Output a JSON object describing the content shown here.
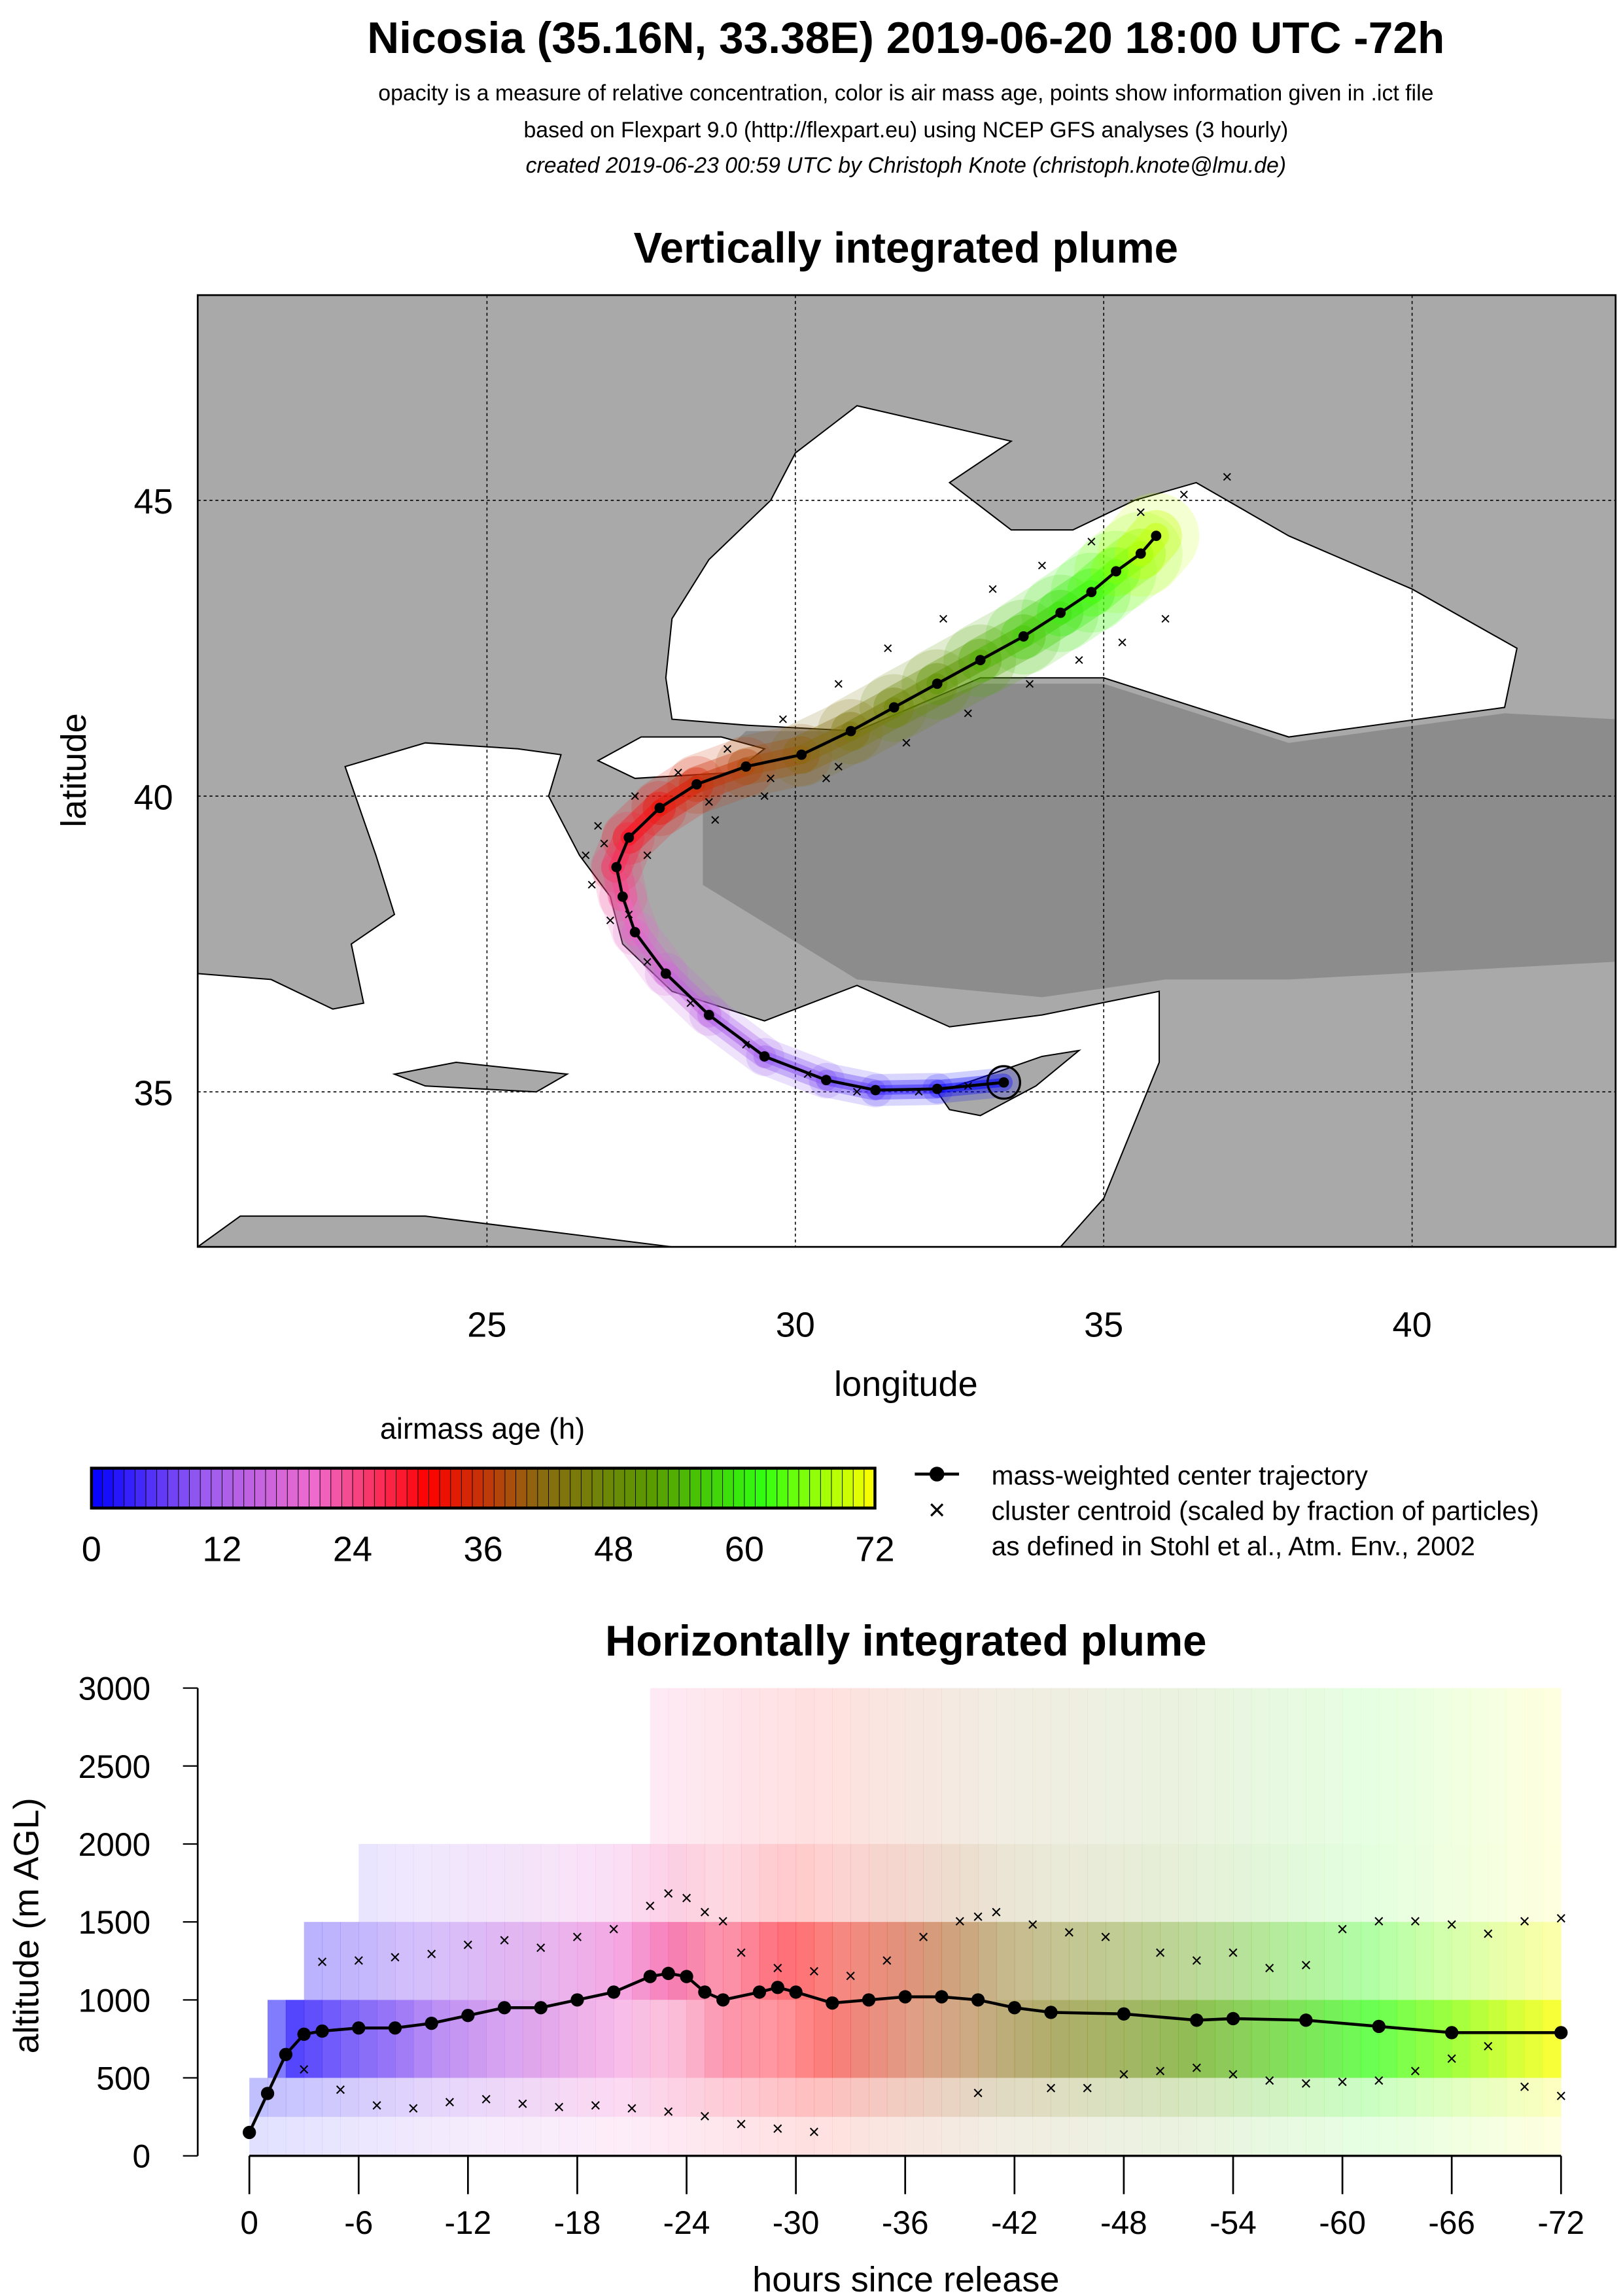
{
  "header": {
    "title": "Nicosia (35.16N, 33.38E) 2019-06-20 18:00 UTC -72h",
    "line1": "opacity is a measure of relative concentration, color is air mass age, points show information given in .ict file",
    "line2": "based on Flexpart 9.0 (http://flexpart.eu) using NCEP GFS analyses (3 hourly)",
    "line3": "created 2019-06-23 00:59 UTC by Christoph Knote (christoph.knote@lmu.de)"
  },
  "colors": {
    "land": "#a9a9a9",
    "land_dark": "#8c8c8c",
    "sea": "#ffffff",
    "colormap": [
      "#0000ff",
      "#9b5cf0",
      "#f06acd",
      "#ff0000",
      "#8a6a10",
      "#5a9a00",
      "#30ff10",
      "#ffff00"
    ]
  },
  "legend": {
    "colorbar_title": "airmass age (h)",
    "colorbar_ticks": [
      "0",
      "12",
      "24",
      "36",
      "48",
      "60",
      "72"
    ],
    "center_label": "mass-weighted center trajectory",
    "cluster_label": "cluster centroid (scaled by fraction of particles)",
    "reference_label": "as defined in Stohl et al., Atm. Env., 2002"
  },
  "chart_data": [
    {
      "type": "scatter",
      "title": "Vertically integrated plume",
      "xlabel": "longitude",
      "ylabel": "latitude",
      "xlim": [
        20.31,
        43.3
      ],
      "ylim": [
        32.38,
        48.47
      ],
      "xticks": [
        25,
        30,
        35,
        40
      ],
      "yticks": [
        35,
        40,
        45
      ],
      "grid": true,
      "release": {
        "lon": 33.38,
        "lat": 35.16
      },
      "center_trajectory": {
        "age_h": [
          0,
          3,
          6,
          9,
          12,
          15,
          18,
          21,
          24,
          27,
          30,
          33,
          36,
          39,
          42,
          45,
          48,
          51,
          54,
          57,
          60,
          63,
          66,
          69,
          72
        ],
        "lon": [
          33.38,
          32.3,
          31.3,
          30.5,
          29.5,
          28.6,
          27.9,
          27.4,
          27.2,
          27.1,
          27.3,
          27.8,
          28.4,
          29.2,
          30.1,
          30.9,
          31.6,
          32.3,
          33.0,
          33.7,
          34.3,
          34.8,
          35.2,
          35.6,
          35.85
        ],
        "lat": [
          35.16,
          35.05,
          35.03,
          35.2,
          35.6,
          36.3,
          37.0,
          37.7,
          38.3,
          38.8,
          39.3,
          39.8,
          40.2,
          40.5,
          40.7,
          41.1,
          41.5,
          41.9,
          42.3,
          42.7,
          43.1,
          43.45,
          43.8,
          44.1,
          44.4
        ]
      },
      "cluster_centroids": {
        "lon": [
          32.8,
          32.0,
          31.0,
          30.2,
          29.2,
          28.3,
          27.6,
          27.0,
          26.7,
          26.6,
          26.8,
          27.4,
          28.1,
          28.9,
          29.8,
          30.7,
          31.5,
          32.4,
          33.2,
          34.0,
          34.8,
          35.6,
          36.3,
          37.0,
          27.3,
          28.6,
          29.6,
          30.7,
          31.8,
          32.8,
          33.8,
          34.6,
          35.3,
          36.0,
          26.9,
          27.6,
          28.7,
          29.5,
          30.5
        ],
        "lat": [
          35.1,
          35.0,
          35.0,
          35.3,
          35.8,
          36.5,
          37.2,
          37.9,
          38.5,
          39.0,
          39.5,
          40.0,
          40.4,
          40.8,
          41.3,
          41.9,
          42.5,
          43.0,
          43.5,
          43.9,
          44.3,
          44.8,
          45.1,
          45.4,
          38.0,
          39.9,
          40.3,
          40.5,
          40.9,
          41.4,
          41.9,
          42.3,
          42.6,
          43.0,
          39.2,
          39.0,
          39.6,
          40.0,
          40.3
        ]
      }
    },
    {
      "type": "heatmap",
      "title": "Horizontally integrated plume",
      "xlabel": "hours since release",
      "ylabel": "altitude (m AGL)",
      "xlim": [
        0,
        -72
      ],
      "ylim": [
        0,
        3000
      ],
      "xticks": [
        "0",
        "-6",
        "-12",
        "-18",
        "-24",
        "-30",
        "-36",
        "-42",
        "-48",
        "-54",
        "-60",
        "-66",
        "-72"
      ],
      "yticks": [
        "0",
        "500",
        "1000",
        "1500",
        "2000",
        "2500",
        "3000"
      ],
      "altitude_bins_m": [
        0,
        100,
        250,
        500,
        1000,
        1500,
        2000,
        3000
      ],
      "center_trajectory": {
        "hours": [
          0,
          -1,
          -2,
          -3,
          -4,
          -6,
          -8,
          -10,
          -12,
          -14,
          -16,
          -18,
          -20,
          -22,
          -23,
          -24,
          -25,
          -26,
          -28,
          -29,
          -30,
          -32,
          -34,
          -36,
          -38,
          -40,
          -42,
          -44,
          -48,
          -52,
          -54,
          -58,
          -62,
          -66,
          -72
        ],
        "altitude_m": [
          150,
          400,
          650,
          780,
          800,
          820,
          820,
          850,
          900,
          950,
          950,
          1000,
          1050,
          1150,
          1170,
          1150,
          1050,
          1000,
          1050,
          1080,
          1050,
          980,
          1000,
          1020,
          1020,
          1000,
          950,
          920,
          910,
          870,
          880,
          870,
          830,
          790,
          790
        ]
      },
      "cluster_upper": {
        "hours": [
          -4,
          -6,
          -8,
          -10,
          -12,
          -14,
          -16,
          -18,
          -20,
          -22,
          -23,
          -24,
          -25,
          -26,
          -27,
          -29,
          -31,
          -33,
          -35,
          -37,
          -39,
          -40,
          -41,
          -43,
          -45,
          -47,
          -50,
          -52,
          -54,
          -56,
          -58,
          -60,
          -62,
          -64,
          -66,
          -68,
          -70,
          -72
        ],
        "altitude_m": [
          1240,
          1250,
          1270,
          1290,
          1350,
          1380,
          1330,
          1400,
          1450,
          1600,
          1680,
          1650,
          1560,
          1500,
          1300,
          1200,
          1180,
          1150,
          1250,
          1400,
          1500,
          1530,
          1560,
          1480,
          1430,
          1400,
          1300,
          1250,
          1300,
          1200,
          1220,
          1450,
          1500,
          1500,
          1480,
          1420,
          1500,
          1520
        ]
      },
      "cluster_lower": {
        "hours": [
          -3,
          -5,
          -7,
          -9,
          -11,
          -13,
          -15,
          -17,
          -19,
          -21,
          -23,
          -25,
          -27,
          -29,
          -31,
          -40,
          -44,
          -46,
          -48,
          -50,
          -52,
          -54,
          -56,
          -58,
          -60,
          -62,
          -64,
          -66,
          -68,
          -70,
          -72
        ],
        "altitude_m": [
          550,
          420,
          320,
          300,
          340,
          360,
          330,
          310,
          320,
          300,
          280,
          250,
          200,
          170,
          150,
          400,
          430,
          430,
          520,
          540,
          560,
          520,
          480,
          460,
          470,
          480,
          540,
          620,
          700,
          440,
          380
        ]
      }
    }
  ]
}
